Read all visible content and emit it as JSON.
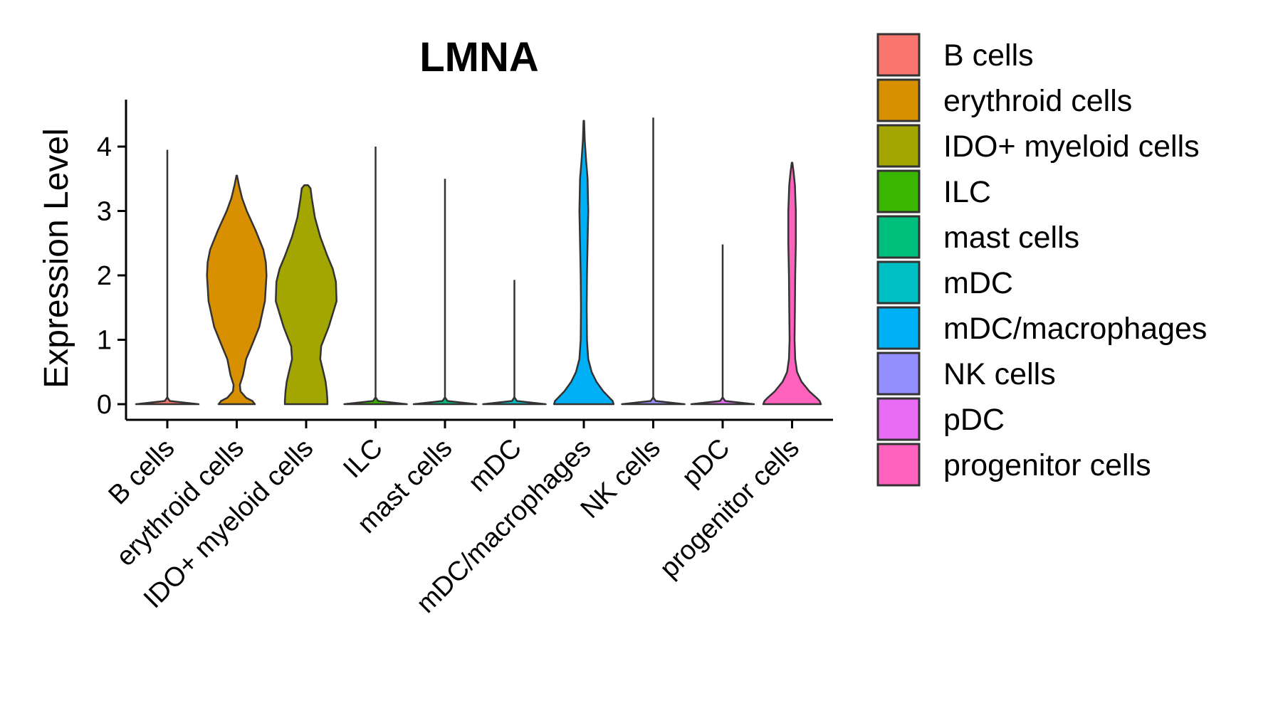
{
  "chart_data": {
    "type": "violin",
    "title": "LMNA",
    "xlabel": "",
    "ylabel": "Expression Level",
    "ylim": [
      0,
      4.7
    ],
    "yticks": [
      0,
      1,
      2,
      3,
      4
    ],
    "categories": [
      "B cells",
      "erythroid cells",
      "IDO+ myeloid cells",
      "ILC",
      "mast cells",
      "mDC",
      "mDC/macrophages",
      "NK cells",
      "pDC",
      "progenitor cells"
    ],
    "colors": [
      "#F8766D",
      "#D89000",
      "#A3A500",
      "#39B600",
      "#00BF7D",
      "#00BFC4",
      "#00B0F6",
      "#9590FF",
      "#E76BF3",
      "#FF62BC"
    ],
    "max_values": [
      3.95,
      3.55,
      3.4,
      4.0,
      3.5,
      1.93,
      4.4,
      4.45,
      2.48,
      3.75
    ],
    "density_profiles": [
      {
        "y": [
          0,
          0.05,
          0.1
        ],
        "w": [
          1.0,
          0.08,
          0.01
        ]
      },
      {
        "y": [
          0,
          0.05,
          0.1,
          0.2,
          0.3,
          0.45,
          0.7,
          0.9,
          1.2,
          1.6,
          2.0,
          2.2,
          2.4,
          2.7,
          3.0,
          3.2,
          3.4,
          3.55
        ],
        "w": [
          0.58,
          0.5,
          0.3,
          0.12,
          0.1,
          0.2,
          0.3,
          0.47,
          0.72,
          0.9,
          0.95,
          0.93,
          0.85,
          0.6,
          0.32,
          0.17,
          0.07,
          0.01
        ]
      },
      {
        "y": [
          0,
          0.05,
          0.2,
          0.35,
          0.5,
          0.7,
          0.9,
          1.2,
          1.6,
          1.9,
          2.1,
          2.3,
          2.6,
          2.9,
          3.2,
          3.35,
          3.4
        ],
        "w": [
          0.68,
          0.68,
          0.66,
          0.62,
          0.55,
          0.45,
          0.48,
          0.72,
          0.97,
          0.95,
          0.85,
          0.68,
          0.45,
          0.28,
          0.18,
          0.14,
          0.06
        ]
      },
      {
        "y": [
          0,
          0.05,
          0.1
        ],
        "w": [
          1.0,
          0.08,
          0.01
        ]
      },
      {
        "y": [
          0,
          0.05,
          0.1
        ],
        "w": [
          1.0,
          0.08,
          0.01
        ]
      },
      {
        "y": [
          0,
          0.05,
          0.1
        ],
        "w": [
          1.0,
          0.08,
          0.01
        ]
      },
      {
        "y": [
          0,
          0.05,
          0.1,
          0.2,
          0.35,
          0.5,
          0.7,
          1.0,
          1.5,
          2.0,
          2.5,
          3.0,
          3.5,
          3.8,
          4.1,
          4.4
        ],
        "w": [
          0.95,
          0.92,
          0.82,
          0.62,
          0.4,
          0.25,
          0.14,
          0.1,
          0.09,
          0.1,
          0.12,
          0.14,
          0.12,
          0.07,
          0.03,
          0.01
        ]
      },
      {
        "y": [
          0,
          0.05,
          0.1
        ],
        "w": [
          1.0,
          0.08,
          0.01
        ]
      },
      {
        "y": [
          0,
          0.05,
          0.1
        ],
        "w": [
          1.0,
          0.08,
          0.01
        ]
      },
      {
        "y": [
          0,
          0.05,
          0.1,
          0.2,
          0.35,
          0.5,
          0.7,
          1.0,
          1.5,
          2.0,
          2.5,
          3.0,
          3.4,
          3.6,
          3.75
        ],
        "w": [
          0.92,
          0.88,
          0.78,
          0.55,
          0.3,
          0.16,
          0.1,
          0.08,
          0.09,
          0.1,
          0.12,
          0.12,
          0.09,
          0.05,
          0.01
        ]
      }
    ],
    "legend": {
      "position": "right",
      "entries": [
        "B cells",
        "erythroid cells",
        "IDO+ myeloid cells",
        "ILC",
        "mast cells",
        "mDC",
        "mDC/macrophages",
        "NK cells",
        "pDC",
        "progenitor cells"
      ]
    },
    "grid": false
  }
}
